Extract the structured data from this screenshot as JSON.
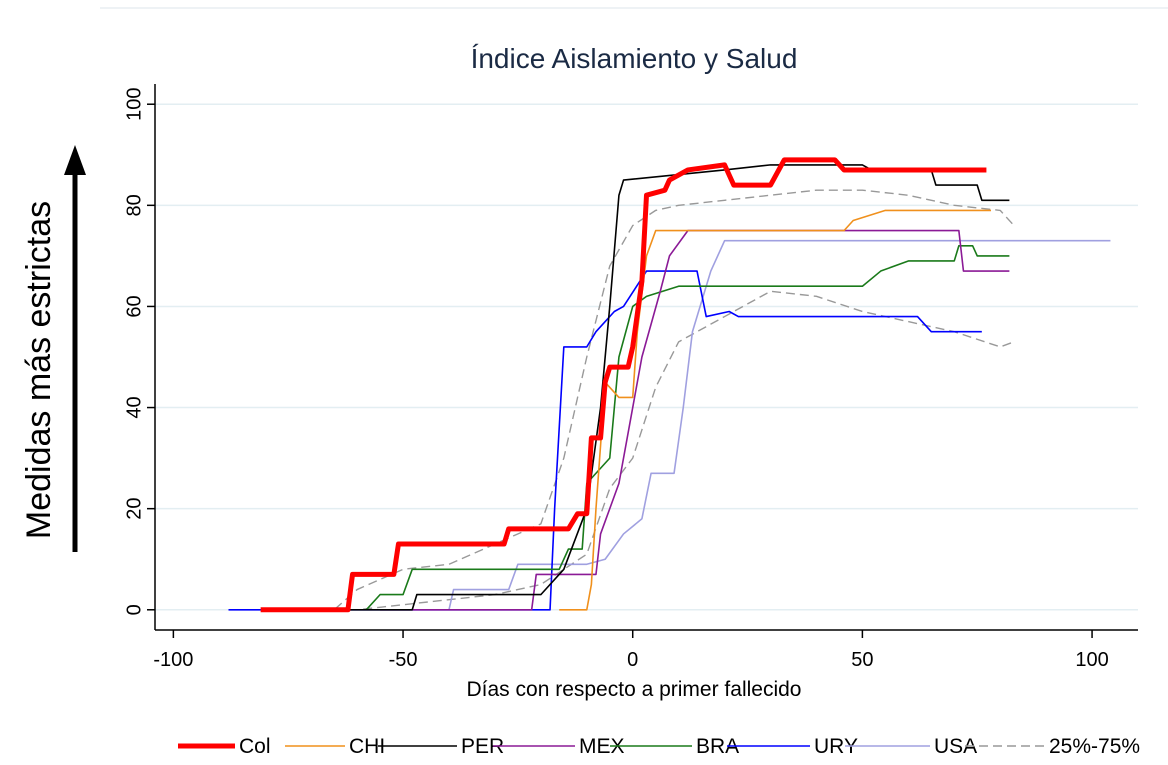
{
  "chart_data": {
    "type": "line",
    "title": "Índice Aislamiento y Salud",
    "x_label": "Días con respecto a primer fallecido",
    "y_label": "Medidas más estrictas",
    "xlim": [
      -104,
      110
    ],
    "ylim": [
      -4,
      104
    ],
    "xticks": [
      -100,
      -50,
      0,
      50,
      100
    ],
    "yticks": [
      0,
      20,
      40,
      60,
      80,
      100
    ],
    "grid": true,
    "legend": "bottom",
    "series": [
      {
        "name": "Col",
        "color": "#ff0000",
        "width": 5,
        "x": [
          -81,
          -62,
          -61,
          -52,
          -51,
          -28,
          -27,
          -14,
          -12,
          -10,
          -9,
          -7,
          -6,
          -5,
          -1,
          0,
          2,
          3,
          7,
          8,
          12,
          20,
          22,
          30,
          33,
          44,
          46,
          77
        ],
        "values": [
          0,
          0,
          7,
          7,
          13,
          13,
          16,
          16,
          19,
          19,
          34,
          34,
          45,
          48,
          48,
          52,
          65,
          82,
          83,
          85,
          87,
          88,
          84,
          84,
          89,
          89,
          87,
          87
        ]
      },
      {
        "name": "CHI",
        "color": "#f0901c",
        "width": 1.6,
        "x": [
          -16,
          -10,
          -9,
          -8,
          -6,
          -3,
          0,
          1,
          3,
          5,
          46,
          48,
          55,
          78
        ],
        "values": [
          0,
          0,
          5,
          20,
          45,
          42,
          42,
          55,
          70,
          75,
          75,
          77,
          79,
          79
        ]
      },
      {
        "name": "PER",
        "color": "#000000",
        "width": 1.6,
        "x": [
          -62,
          -48,
          -47,
          -20,
          -15,
          -10,
          -7,
          -5,
          -3,
          -2,
          20,
          30,
          50,
          52,
          65,
          66,
          75,
          76,
          82
        ],
        "values": [
          0,
          0,
          3,
          3,
          8,
          20,
          40,
          60,
          82,
          85,
          87,
          88,
          88,
          87,
          87,
          84,
          84,
          81,
          81
        ]
      },
      {
        "name": "MEX",
        "color": "#8b1a96",
        "width": 1.6,
        "x": [
          -55,
          -22,
          -21,
          -8,
          -7,
          -3,
          2,
          6,
          8,
          12,
          71,
          72,
          82
        ],
        "values": [
          0,
          0,
          7,
          7,
          15,
          25,
          50,
          63,
          70,
          75,
          75,
          67,
          67
        ]
      },
      {
        "name": "BRA",
        "color": "#1a7a1a",
        "width": 1.6,
        "x": [
          -58,
          -55,
          -50,
          -48,
          -16,
          -14,
          -11,
          -10,
          -5,
          -3,
          0,
          3,
          10,
          50,
          54,
          60,
          70,
          71,
          74,
          75,
          82
        ],
        "values": [
          0,
          3,
          3,
          8,
          8,
          12,
          12,
          25,
          30,
          50,
          60,
          62,
          64,
          64,
          67,
          69,
          69,
          72,
          72,
          70,
          70
        ]
      },
      {
        "name": "URY",
        "color": "#0000ff",
        "width": 1.6,
        "x": [
          -88,
          -18,
          -17,
          -15,
          -10,
          -8,
          -4,
          -2,
          3,
          14,
          16,
          21,
          23,
          62,
          65,
          76
        ],
        "values": [
          0,
          0,
          20,
          52,
          52,
          55,
          59,
          60,
          67,
          67,
          58,
          59,
          58,
          58,
          55,
          55
        ]
      },
      {
        "name": "USA",
        "color": "#a0a0e0",
        "width": 1.6,
        "x": [
          -40,
          -39,
          -27,
          -25,
          -10,
          -6,
          -2,
          2,
          4,
          9,
          11,
          13,
          17,
          20,
          104
        ],
        "values": [
          0,
          4,
          4,
          9,
          9,
          10,
          15,
          18,
          27,
          27,
          40,
          55,
          67,
          73,
          73
        ]
      },
      {
        "name": "25%-75%",
        "color": "#999999",
        "width": 1.4,
        "dash": true,
        "x": [
          -80,
          -65,
          -60,
          -50,
          -40,
          -30,
          -20,
          -15,
          -10,
          -5,
          0,
          5,
          10,
          20,
          30,
          40,
          50,
          60,
          70,
          80,
          83
        ],
        "values": [
          0,
          0,
          4,
          8,
          9,
          13,
          17,
          30,
          50,
          68,
          76,
          79,
          80,
          81,
          82,
          83,
          83,
          82,
          80,
          79,
          76
        ],
        "lower": [
          0,
          0,
          0,
          1,
          2,
          3,
          5,
          8,
          11,
          24,
          30,
          44,
          53,
          58,
          63,
          62,
          59,
          57,
          55,
          52,
          53
        ]
      }
    ]
  }
}
